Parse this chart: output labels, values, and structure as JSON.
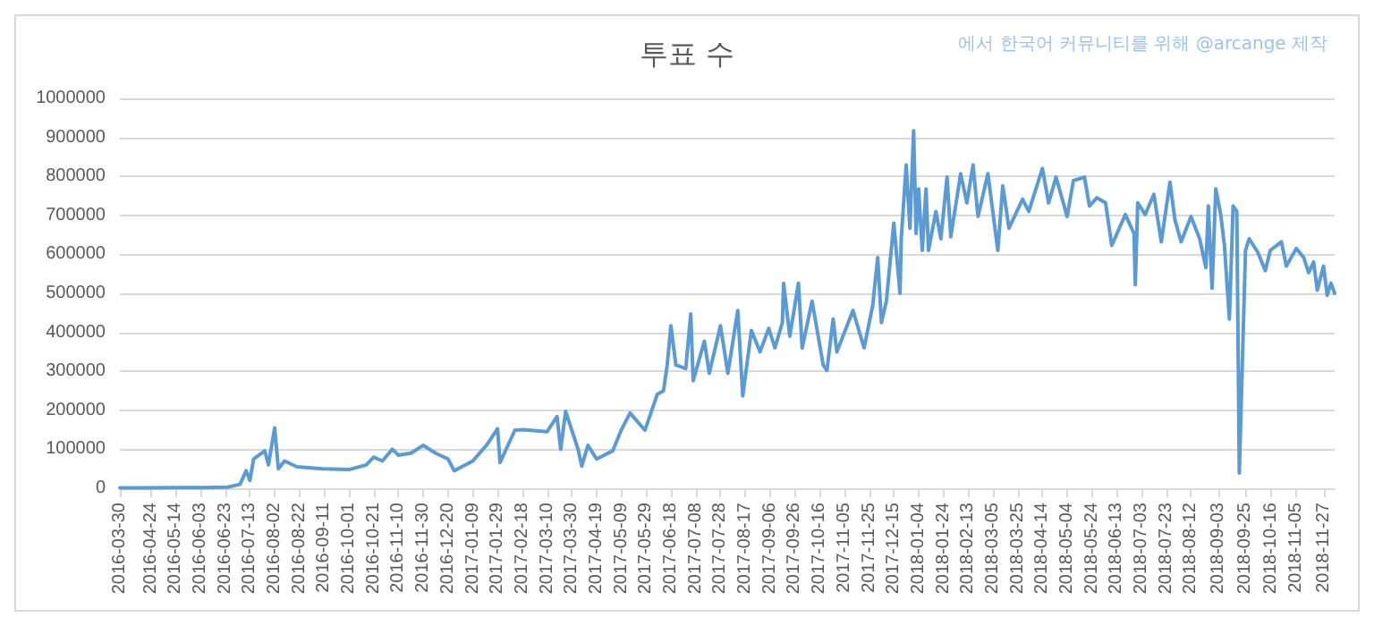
{
  "chart_data": {
    "type": "line",
    "title": "투표 수",
    "annotations": [
      "에서 한국어 커뮤니티를 위해 @arcange 제작"
    ],
    "x": [
      "2016-03-30",
      "2016-04-20",
      "2016-05-15",
      "2016-06-05",
      "2016-06-25",
      "2016-07-05",
      "2016-07-10",
      "2016-07-13",
      "2016-07-16",
      "2016-07-25",
      "2016-07-28",
      "2016-08-02",
      "2016-08-05",
      "2016-08-10",
      "2016-08-20",
      "2016-09-10",
      "2016-10-01",
      "2016-10-15",
      "2016-10-21",
      "2016-10-28",
      "2016-11-05",
      "2016-11-10",
      "2016-11-20",
      "2016-11-30",
      "2016-12-10",
      "2016-12-20",
      "2016-12-25",
      "2017-01-09",
      "2017-01-20",
      "2017-01-29",
      "2017-01-31",
      "2017-02-12",
      "2017-02-19",
      "2017-03-10",
      "2017-03-18",
      "2017-03-21",
      "2017-03-25",
      "2017-04-04",
      "2017-04-07",
      "2017-04-12",
      "2017-04-19",
      "2017-05-02",
      "2017-05-09",
      "2017-05-16",
      "2017-05-28",
      "2017-06-07",
      "2017-06-12",
      "2017-06-15",
      "2017-06-18",
      "2017-06-22",
      "2017-06-30",
      "2017-07-04",
      "2017-07-06",
      "2017-07-15",
      "2017-07-19",
      "2017-07-28",
      "2017-08-03",
      "2017-08-11",
      "2017-08-15",
      "2017-08-22",
      "2017-08-29",
      "2017-09-05",
      "2017-09-10",
      "2017-09-16",
      "2017-09-17",
      "2017-09-22",
      "2017-09-29",
      "2017-10-02",
      "2017-10-10",
      "2017-10-19",
      "2017-10-22",
      "2017-10-27",
      "2017-10-30",
      "2017-11-12",
      "2017-11-21",
      "2017-11-28",
      "2017-12-02",
      "2017-12-05",
      "2017-12-09",
      "2017-12-15",
      "2017-12-20",
      "2017-12-21",
      "2017-12-25",
      "2017-12-28",
      "2017-12-31",
      "2018-01-02",
      "2018-01-04",
      "2018-01-07",
      "2018-01-10",
      "2018-01-12",
      "2018-01-18",
      "2018-01-22",
      "2018-01-27",
      "2018-01-30",
      "2018-02-07",
      "2018-02-12",
      "2018-02-17",
      "2018-02-21",
      "2018-03-01",
      "2018-03-09",
      "2018-03-13",
      "2018-03-18",
      "2018-03-29",
      "2018-04-03",
      "2018-04-14",
      "2018-04-19",
      "2018-04-25",
      "2018-05-04",
      "2018-05-09",
      "2018-05-18",
      "2018-05-22",
      "2018-05-28",
      "2018-06-04",
      "2018-06-09",
      "2018-06-20",
      "2018-06-27",
      "2018-06-28",
      "2018-06-30",
      "2018-07-06",
      "2018-07-13",
      "2018-07-19",
      "2018-07-26",
      "2018-07-30",
      "2018-08-04",
      "2018-08-12",
      "2018-08-19",
      "2018-08-24",
      "2018-08-26",
      "2018-08-29",
      "2018-09-01",
      "2018-09-05",
      "2018-09-08",
      "2018-09-12",
      "2018-09-15",
      "2018-09-18",
      "2018-09-20",
      "2018-09-25",
      "2018-09-28",
      "2018-10-05",
      "2018-10-11",
      "2018-10-15",
      "2018-10-24",
      "2018-10-28",
      "2018-11-05",
      "2018-11-11",
      "2018-11-15",
      "2018-11-19",
      "2018-11-22",
      "2018-11-27",
      "2018-11-30",
      "2018-12-03",
      "2018-12-06"
    ],
    "series": [
      {
        "color": "#5b9bd5",
        "values": [
          1000,
          1000,
          2000,
          2000,
          3000,
          10000,
          45000,
          20000,
          75000,
          96000,
          60000,
          155000,
          50000,
          70000,
          55000,
          50000,
          48000,
          60000,
          80000,
          70000,
          100000,
          85000,
          90000,
          110000,
          90000,
          75000,
          45000,
          70000,
          110000,
          153000,
          66000,
          149000,
          150000,
          145000,
          184000,
          100000,
          197000,
          100000,
          57000,
          110000,
          75000,
          96000,
          150000,
          193000,
          149000,
          241000,
          250000,
          316000,
          417000,
          316000,
          307000,
          447000,
          276000,
          377000,
          295000,
          417000,
          295000,
          456000,
          237000,
          405000,
          350000,
          410000,
          360000,
          425000,
          526000,
          390000,
          526000,
          360000,
          480000,
          316000,
          302000,
          434000,
          350000,
          456000,
          360000,
          470000,
          592000,
          425000,
          480000,
          680000,
          500000,
          640000,
          829000,
          667000,
          917000,
          653000,
          768000,
          610000,
          768000,
          610000,
          710000,
          640000,
          798000,
          645000,
          807000,
          732000,
          829000,
          697000,
          807000,
          610000,
          776000,
          667000,
          741000,
          710000,
          820000,
          732000,
          798000,
          697000,
          789000,
          798000,
          724000,
          745000,
          732000,
          623000,
          702000,
          653000,
          522000,
          732000,
          702000,
          754000,
          632000,
          785000,
          689000,
          632000,
          697000,
          640000,
          566000,
          724000,
          513000,
          768000,
          702000,
          623000,
          434000,
          724000,
          710000,
          39000,
          610000,
          640000,
          605000,
          558000,
          610000,
          632000,
          570000,
          615000,
          592000,
          553000,
          580000,
          508000,
          570000,
          495000,
          526000,
          500000
        ]
      }
    ],
    "xlim": [
      "2016-03-30",
      "2018-12-06"
    ],
    "xticks": [
      "2016-03-30",
      "2016-04-24",
      "2016-05-14",
      "2016-06-03",
      "2016-06-23",
      "2016-07-13",
      "2016-08-02",
      "2016-08-22",
      "2016-09-11",
      "2016-10-01",
      "2016-10-21",
      "2016-11-10",
      "2016-11-30",
      "2016-12-20",
      "2017-01-09",
      "2017-01-29",
      "2017-02-18",
      "2017-03-10",
      "2017-03-30",
      "2017-04-19",
      "2017-05-09",
      "2017-05-29",
      "2017-06-18",
      "2017-07-08",
      "2017-07-28",
      "2017-08-17",
      "2017-09-06",
      "2017-09-26",
      "2017-10-16",
      "2017-11-05",
      "2017-11-25",
      "2017-12-15",
      "2018-01-04",
      "2018-01-24",
      "2018-02-13",
      "2018-03-05",
      "2018-03-25",
      "2018-04-14",
      "2018-05-04",
      "2018-05-24",
      "2018-06-13",
      "2018-07-03",
      "2018-07-23",
      "2018-08-12",
      "2018-09-03",
      "2018-09-25",
      "2018-10-16",
      "2018-11-05",
      "2018-11-27"
    ],
    "ylim": [
      0,
      1000000
    ],
    "yticks": [
      0,
      100000,
      200000,
      300000,
      400000,
      500000,
      600000,
      700000,
      800000,
      900000,
      1000000
    ],
    "grid": "y",
    "marker": "none",
    "line_style": "solid"
  }
}
